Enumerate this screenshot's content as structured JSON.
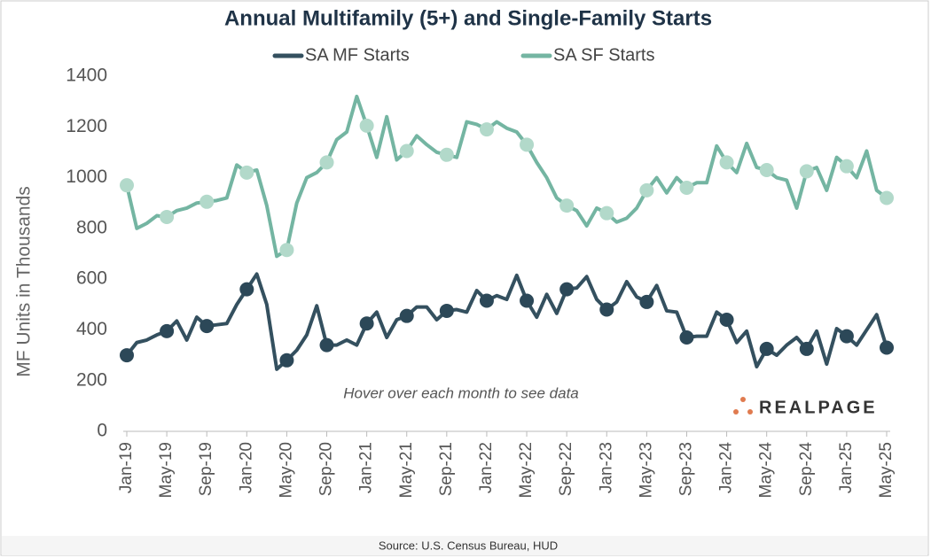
{
  "chart_data": {
    "type": "line",
    "title": "Annual Multifamily (5+) and Single-Family Starts",
    "y_label": "MF Units in Thousands",
    "annotation": "Hover over each month to see data",
    "source": "Source: U.S. Census Bureau, HUD",
    "logo": "REALPAGE",
    "categories": [
      "Jan-19",
      null,
      null,
      null,
      "May-19",
      null,
      null,
      null,
      "Sep-19",
      null,
      null,
      null,
      "Jan-20",
      null,
      null,
      null,
      "May-20",
      null,
      null,
      null,
      "Sep-20",
      null,
      null,
      null,
      "Jan-21",
      null,
      null,
      null,
      "May-21",
      null,
      null,
      null,
      "Sep-21",
      null,
      null,
      null,
      "Jan-22",
      null,
      null,
      null,
      "May-22",
      null,
      null,
      null,
      "Sep-22",
      null,
      null,
      null,
      "Jan-23",
      null,
      null,
      null,
      "May-23",
      null,
      null,
      null,
      "Sep-23",
      null,
      null,
      null,
      "Jan-24",
      null,
      null,
      null,
      "May-24",
      null,
      null,
      null,
      "Sep-24",
      null,
      null,
      null,
      "Jan-25",
      null,
      null,
      null,
      "May-25"
    ],
    "series": [
      {
        "name": "SA MF Starts",
        "color": "#34505f",
        "marker_color": "#2c4858",
        "values": [
          300,
          350,
          360,
          380,
          395,
          435,
          360,
          450,
          415,
          420,
          425,
          500,
          560,
          620,
          500,
          245,
          280,
          320,
          380,
          495,
          340,
          340,
          360,
          340,
          425,
          470,
          370,
          440,
          455,
          490,
          490,
          440,
          475,
          480,
          470,
          555,
          515,
          535,
          520,
          615,
          515,
          450,
          540,
          465,
          560,
          565,
          610,
          520,
          480,
          510,
          590,
          530,
          510,
          575,
          475,
          470,
          370,
          375,
          375,
          470,
          440,
          350,
          395,
          255,
          325,
          300,
          340,
          370,
          325,
          395,
          265,
          405,
          375,
          340,
          400,
          460,
          330
        ]
      },
      {
        "name": "SA SF Starts",
        "color": "#74b5a2",
        "marker_color": "#b2d9ca",
        "values": [
          970,
          800,
          820,
          850,
          845,
          870,
          880,
          900,
          905,
          910,
          920,
          1050,
          1020,
          1030,
          890,
          690,
          715,
          900,
          1000,
          1020,
          1060,
          1150,
          1180,
          1320,
          1205,
          1080,
          1240,
          1070,
          1105,
          1165,
          1130,
          1100,
          1090,
          1080,
          1220,
          1210,
          1190,
          1220,
          1195,
          1180,
          1130,
          1060,
          1000,
          920,
          890,
          870,
          810,
          880,
          860,
          825,
          840,
          880,
          950,
          1000,
          940,
          1000,
          960,
          980,
          980,
          1125,
          1060,
          1020,
          1135,
          1040,
          1030,
          1000,
          990,
          880,
          1025,
          1040,
          950,
          1080,
          1045,
          1000,
          1105,
          950,
          920
        ]
      }
    ],
    "ylim": [
      0,
      1400
    ],
    "yticks": [
      0,
      200,
      400,
      600,
      800,
      1000,
      1200,
      1400
    ],
    "grid": false,
    "markers_on_labeled_months": true
  }
}
